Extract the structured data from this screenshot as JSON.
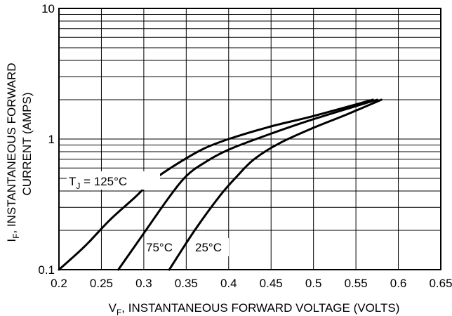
{
  "chart_data": {
    "type": "line",
    "title": "",
    "xlabel": "V",
    "xlabel_sub": "F",
    "xlabel_rest": ", INSTANTANEOUS FORWARD VOLTAGE (VOLTS)",
    "ylabel_line1_main": "I",
    "ylabel_line1_sub": "F",
    "ylabel_line1_rest": ", INSTANTANEOUS FORWARD",
    "ylabel_line2": "CURRENT (AMPS)",
    "xlim": [
      0.2,
      0.65
    ],
    "ylim": [
      0.1,
      10
    ],
    "yscale": "log",
    "grid": true,
    "x_ticks": [
      0.2,
      0.25,
      0.3,
      0.35,
      0.4,
      0.45,
      0.5,
      0.55,
      0.6,
      0.65
    ],
    "x_tick_labels": [
      "0.2",
      "0.25",
      "0.3",
      "0.35",
      "0.4",
      "0.45",
      "0.5",
      "0.55",
      "0.6",
      "0.65"
    ],
    "y_tick_values": [
      0.1,
      1,
      10
    ],
    "y_tick_labels": [
      "0.1",
      "1",
      "10"
    ],
    "series": [
      {
        "x": [
          0.2,
          0.23,
          0.26,
          0.29,
          0.31,
          0.34,
          0.37,
          0.4,
          0.45,
          0.5,
          0.57
        ],
        "y": [
          0.1,
          0.15,
          0.24,
          0.36,
          0.48,
          0.65,
          0.84,
          1.0,
          1.25,
          1.5,
          2.0
        ]
      },
      {
        "x": [
          0.27,
          0.3,
          0.33,
          0.35,
          0.37,
          0.4,
          0.45,
          0.5,
          0.575
        ],
        "y": [
          0.1,
          0.19,
          0.36,
          0.52,
          0.65,
          0.83,
          1.1,
          1.42,
          2.0
        ]
      },
      {
        "x": [
          0.33,
          0.36,
          0.39,
          0.41,
          0.43,
          0.46,
          0.5,
          0.54,
          0.58
        ],
        "y": [
          0.1,
          0.2,
          0.37,
          0.52,
          0.7,
          0.93,
          1.22,
          1.55,
          2.0
        ]
      }
    ],
    "annotations": [
      {
        "main": "T",
        "sub": "J",
        "rest": " = 125°C"
      },
      {
        "text": "75°C"
      },
      {
        "text": "25°C"
      }
    ]
  }
}
